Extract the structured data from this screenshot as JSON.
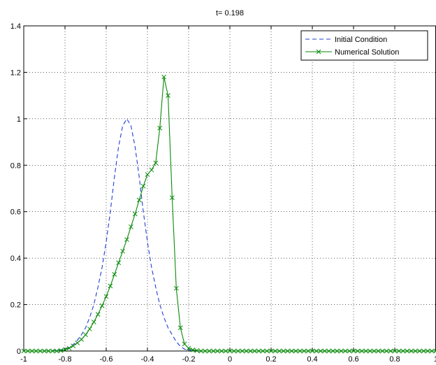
{
  "chart_data": {
    "type": "line",
    "title": "t= 0.198",
    "xlabel": "",
    "ylabel": "",
    "xlim": [
      -1,
      1
    ],
    "ylim": [
      0,
      1.4
    ],
    "grid": true,
    "legend_position": "top-right",
    "x_ticks": [
      "-1",
      "-0.8",
      "-0.6",
      "-0.4",
      "-0.2",
      "0",
      "0.2",
      "0.4",
      "0.6",
      "0.8",
      "1"
    ],
    "y_ticks": [
      "0",
      "0.2",
      "0.4",
      "0.6",
      "0.8",
      "1",
      "1.2",
      "1.4"
    ],
    "series": [
      {
        "name": "Initial Condition",
        "style": "dashed",
        "color": "#1f3fd6",
        "marker": "none",
        "x": [
          -1.0,
          -0.9,
          -0.85,
          -0.8,
          -0.78,
          -0.75,
          -0.72,
          -0.7,
          -0.68,
          -0.66,
          -0.64,
          -0.62,
          -0.6,
          -0.58,
          -0.56,
          -0.54,
          -0.52,
          -0.5,
          -0.48,
          -0.46,
          -0.44,
          -0.42,
          -0.4,
          -0.38,
          -0.36,
          -0.34,
          -0.32,
          -0.3,
          -0.28,
          -0.26,
          -0.24,
          -0.22,
          -0.2,
          -0.15,
          -0.1,
          0.0,
          0.5,
          1.0
        ],
        "y": [
          0.0,
          0.0,
          0.002,
          0.008,
          0.015,
          0.035,
          0.07,
          0.1,
          0.145,
          0.2,
          0.275,
          0.36,
          0.47,
          0.6,
          0.75,
          0.88,
          0.97,
          1.0,
          0.97,
          0.88,
          0.75,
          0.6,
          0.47,
          0.36,
          0.275,
          0.2,
          0.145,
          0.1,
          0.07,
          0.04,
          0.02,
          0.008,
          0.003,
          0.0,
          0.0,
          0.0,
          0.0,
          0.0
        ]
      },
      {
        "name": "Numerical Solution",
        "style": "solid",
        "color": "#0a8a0a",
        "marker": "x",
        "x": [
          -1.0,
          -0.98,
          -0.96,
          -0.94,
          -0.92,
          -0.9,
          -0.88,
          -0.86,
          -0.84,
          -0.82,
          -0.8,
          -0.78,
          -0.76,
          -0.74,
          -0.72,
          -0.7,
          -0.68,
          -0.66,
          -0.64,
          -0.62,
          -0.6,
          -0.58,
          -0.56,
          -0.54,
          -0.52,
          -0.5,
          -0.48,
          -0.46,
          -0.44,
          -0.42,
          -0.4,
          -0.38,
          -0.36,
          -0.34,
          -0.32,
          -0.3,
          -0.28,
          -0.26,
          -0.24,
          -0.22,
          -0.2,
          -0.18,
          -0.16,
          -0.14,
          -0.12,
          -0.1,
          -0.08,
          -0.06,
          -0.04,
          -0.02,
          0.0,
          0.02,
          0.04,
          0.06,
          0.08,
          0.1,
          0.12,
          0.14,
          0.16,
          0.18,
          0.2,
          0.22,
          0.24,
          0.26,
          0.28,
          0.3,
          0.32,
          0.34,
          0.36,
          0.38,
          0.4,
          0.42,
          0.44,
          0.46,
          0.48,
          0.5,
          0.52,
          0.54,
          0.56,
          0.58,
          0.6,
          0.62,
          0.64,
          0.66,
          0.68,
          0.7,
          0.72,
          0.74,
          0.76,
          0.78,
          0.8,
          0.82,
          0.84,
          0.86,
          0.88,
          0.9,
          0.92,
          0.94,
          0.96,
          0.98,
          1.0
        ],
        "y": [
          0.0,
          0.0,
          0.0,
          0.0,
          0.0,
          0.0,
          0.0,
          0.0,
          0.0,
          0.002,
          0.006,
          0.012,
          0.022,
          0.035,
          0.05,
          0.07,
          0.095,
          0.125,
          0.158,
          0.195,
          0.235,
          0.28,
          0.33,
          0.38,
          0.43,
          0.48,
          0.535,
          0.59,
          0.65,
          0.71,
          0.76,
          0.78,
          0.81,
          0.96,
          1.18,
          1.1,
          0.66,
          0.27,
          0.1,
          0.03,
          0.012,
          0.005,
          0.002,
          0.0,
          0.0,
          0.0,
          0.0,
          0.0,
          0.0,
          0.0,
          0.0,
          0.0,
          0.0,
          0.0,
          0.0,
          0.0,
          0.0,
          0.0,
          0.0,
          0.0,
          0.0,
          0.0,
          0.0,
          0.0,
          0.0,
          0.0,
          0.0,
          0.0,
          0.0,
          0.0,
          0.0,
          0.0,
          0.0,
          0.0,
          0.0,
          0.0,
          0.0,
          0.0,
          0.0,
          0.0,
          0.0,
          0.0,
          0.0,
          0.0,
          0.0,
          0.0,
          0.0,
          0.0,
          0.0,
          0.0,
          0.0,
          0.0,
          0.0,
          0.0,
          0.0,
          0.0,
          0.0,
          0.0,
          0.0,
          0.0,
          0.0
        ]
      }
    ]
  }
}
